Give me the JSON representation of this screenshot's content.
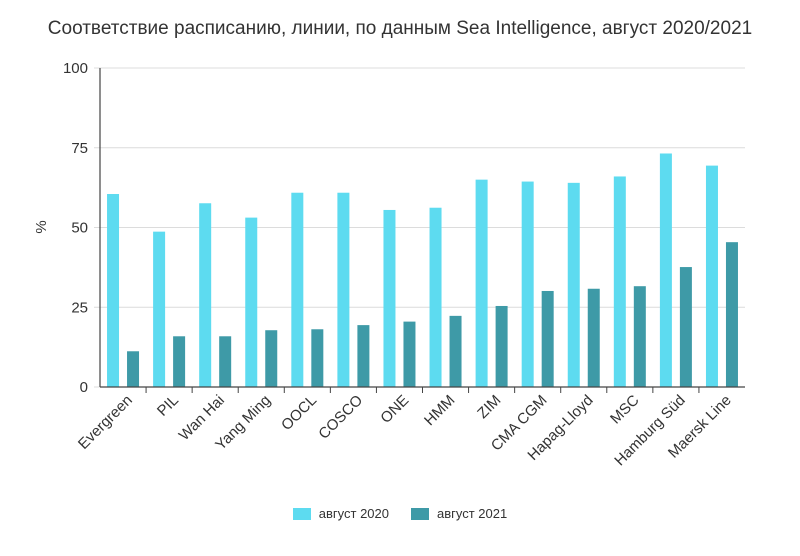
{
  "chart_data": {
    "type": "bar",
    "title": "Соответствие расписанию, линии, по данным Sea Intelligence, август 2020/2021",
    "xlabel": "",
    "ylabel": "%",
    "ylim": [
      0,
      100
    ],
    "yticks": [
      0,
      25,
      50,
      75,
      100
    ],
    "grid": true,
    "legend_position": "bottom-center",
    "categories": [
      "Evergreen",
      "PIL",
      "Wan Hai",
      "Yang Ming",
      "OOCL",
      "COSCO",
      "ONE",
      "HMM",
      "ZIM",
      "CMA CGM",
      "Hapag-Lloyd",
      "MSC",
      "Hamburg Süd",
      "Maersk Line"
    ],
    "series": [
      {
        "name": "август 2020",
        "color": "#5ddbf0",
        "values": [
          60.5,
          48.7,
          57.6,
          53.1,
          60.9,
          60.9,
          55.5,
          56.2,
          65.0,
          64.4,
          64.0,
          66.0,
          73.2,
          69.4
        ]
      },
      {
        "name": "август 2021",
        "color": "#3e9aa7",
        "values": [
          11.2,
          15.9,
          15.9,
          17.8,
          18.1,
          19.4,
          20.5,
          22.3,
          25.4,
          30.1,
          30.8,
          31.6,
          37.6,
          45.4
        ]
      }
    ]
  }
}
